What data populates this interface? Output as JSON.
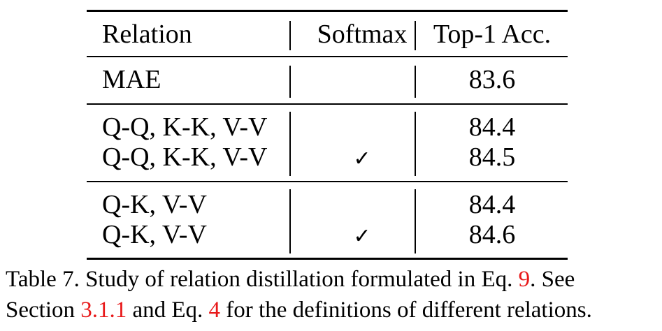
{
  "table": {
    "headers": {
      "relation": "Relation",
      "softmax": "Softmax",
      "accuracy": "Top-1 Acc."
    },
    "groups": [
      {
        "rows": [
          {
            "relation": "MAE",
            "softmax": "",
            "accuracy": "83.6"
          }
        ]
      },
      {
        "rows": [
          {
            "relation": "Q-Q, K-K, V-V",
            "softmax": "",
            "accuracy": "84.4"
          },
          {
            "relation": "Q-Q, K-K, V-V",
            "softmax": "✓",
            "accuracy": "84.5"
          }
        ]
      },
      {
        "rows": [
          {
            "relation": "Q-K, V-V",
            "softmax": "",
            "accuracy": "84.4"
          },
          {
            "relation": "Q-K, V-V",
            "softmax": "✓",
            "accuracy": "84.6"
          }
        ]
      }
    ]
  },
  "caption": {
    "line1_text": "Table 7.  Study of relation distillation formulated in Eq. ",
    "line1_ref": "9",
    "line1_tail": ".  See",
    "line2_text": "Section ",
    "line2_ref1": "3.1.1",
    "line2_mid": " and Eq. ",
    "line2_ref2": "4",
    "line2_tail": " for the definitions of different relations."
  },
  "colors": {
    "reference": "#e8191a",
    "text": "#000000"
  }
}
